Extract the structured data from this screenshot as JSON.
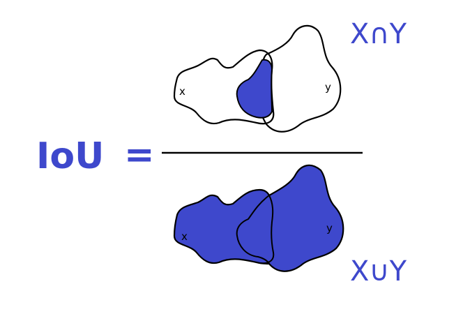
{
  "formula": {
    "lhs": "IoU",
    "equals": "="
  },
  "numerator": {
    "label": "X∩Y",
    "shape_x_label": "x",
    "shape_y_label": "y"
  },
  "denominator": {
    "label": "X∪Y",
    "shape_x_label": "x",
    "shape_y_label": "y"
  },
  "colors": {
    "accent": "#3e48cc",
    "outline": "#000000",
    "background": "#ffffff"
  }
}
